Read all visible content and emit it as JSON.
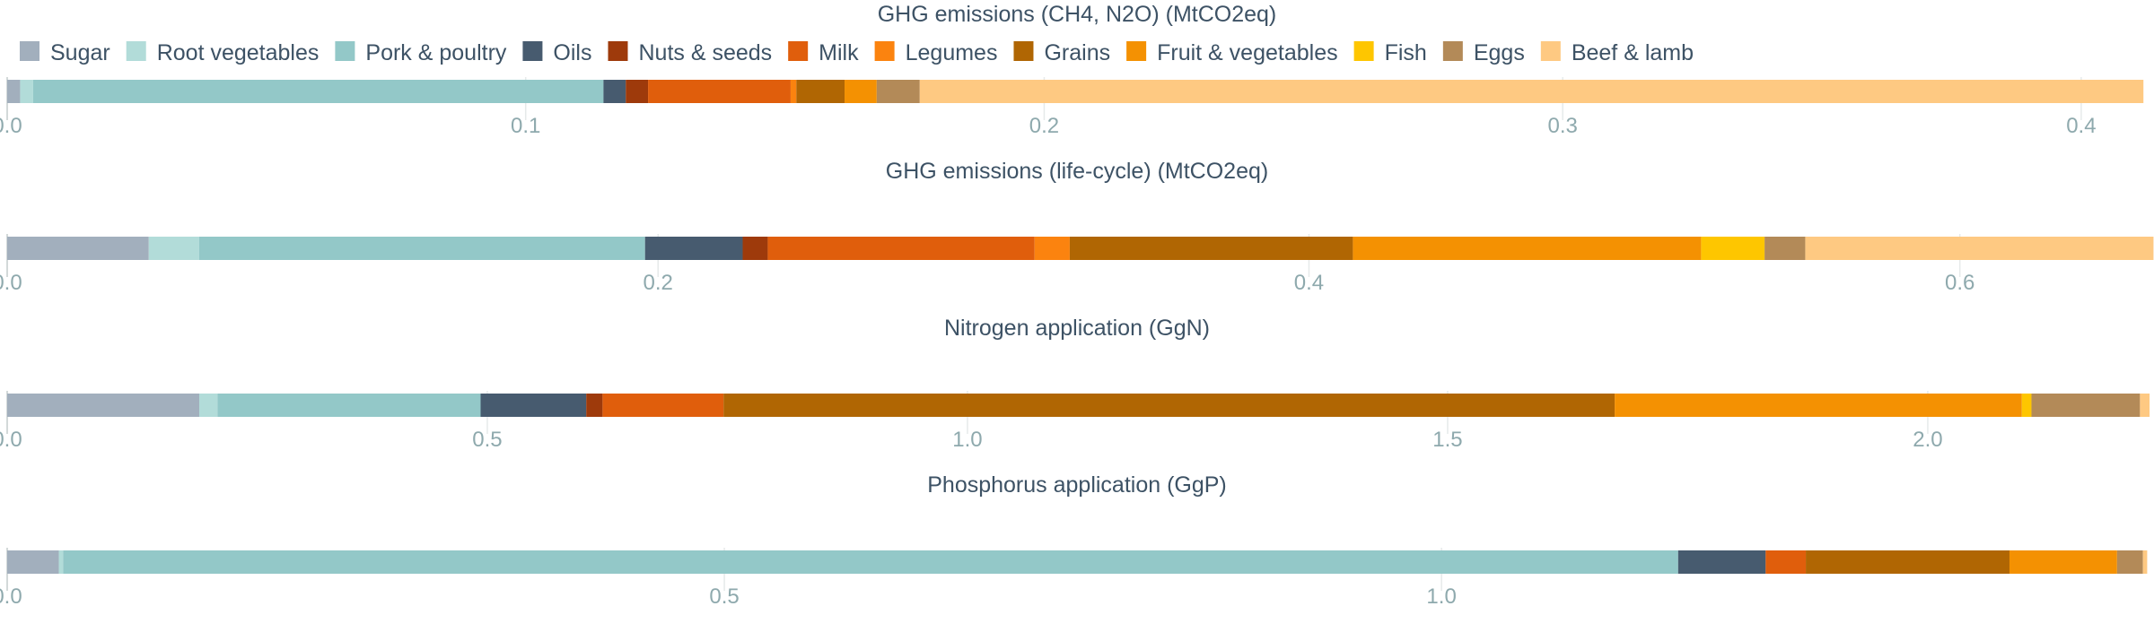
{
  "colors": {
    "text": "#3d5265",
    "tick": "#8ea9ad",
    "grid": "#e6eaea",
    "axis": "#c4cccc"
  },
  "chart_data": {
    "type": "bar",
    "orientation": "horizontal",
    "stacked": true,
    "legend": {
      "position": "top-left",
      "entries": [
        {
          "name": "Sugar",
          "color": "#a2afbd"
        },
        {
          "name": "Root vegetables",
          "color": "#b2dcd9"
        },
        {
          "name": "Pork & poultry",
          "color": "#93c8c8"
        },
        {
          "name": "Oils",
          "color": "#475b6f"
        },
        {
          "name": "Nuts & seeds",
          "color": "#9e3a0b"
        },
        {
          "name": "Milk",
          "color": "#e05e0c"
        },
        {
          "name": "Legumes",
          "color": "#fb830f"
        },
        {
          "name": "Grains",
          "color": "#b06603"
        },
        {
          "name": "Fruit & vegetables",
          "color": "#f49102"
        },
        {
          "name": "Fish",
          "color": "#fec600"
        },
        {
          "name": "Eggs",
          "color": "#b38a58"
        },
        {
          "name": "Beef & lamb",
          "color": "#fec982"
        }
      ]
    },
    "panels": [
      {
        "title": "GHG emissions (CH4, N2O) (MtCO2eq)",
        "xlim": [
          0,
          0.413
        ],
        "ticks": [
          0,
          0.1,
          0.2,
          0.3,
          0.4
        ],
        "tick_labels": [
          "0.0",
          "0.1",
          "0.2",
          "0.3",
          "0.4"
        ],
        "values": [
          0.0025,
          0.0025,
          0.11,
          0.0043,
          0.0043,
          0.0275,
          0.0011,
          0.0093,
          0.0062,
          0.0,
          0.0083,
          0.236
        ]
      },
      {
        "title": "GHG emissions (life-cycle) (MtCO2eq)",
        "xlim": [
          0,
          0.658
        ],
        "ticks": [
          0,
          0.2,
          0.4,
          0.6
        ],
        "tick_labels": [
          "0.0",
          "0.2",
          "0.4",
          "0.6"
        ],
        "values": [
          0.0435,
          0.0155,
          0.137,
          0.03,
          0.0077,
          0.082,
          0.0108,
          0.087,
          0.107,
          0.0195,
          0.0125,
          0.107
        ]
      },
      {
        "title": "Nitrogen application (GgN)",
        "xlim": [
          0,
          2.23
        ],
        "ticks": [
          0,
          0.5,
          1.0,
          1.5,
          2.0
        ],
        "tick_labels": [
          "0.0",
          "0.5",
          "1.0",
          "1.5",
          "2.0"
        ],
        "values": [
          0.2,
          0.019,
          0.274,
          0.11,
          0.017,
          0.126,
          0.0,
          0.928,
          0.424,
          0.01,
          0.113,
          0.01
        ]
      },
      {
        "title": "Phosphorus application (GgP)",
        "xlim": [
          0,
          1.493
        ],
        "ticks": [
          0,
          0.5,
          1.0
        ],
        "tick_labels": [
          "0.0",
          "0.5",
          "1.0"
        ],
        "values": [
          0.036,
          0.003,
          1.126,
          0.061,
          0.0,
          0.028,
          0.0,
          0.142,
          0.075,
          0.0,
          0.018,
          0.003
        ]
      }
    ]
  }
}
